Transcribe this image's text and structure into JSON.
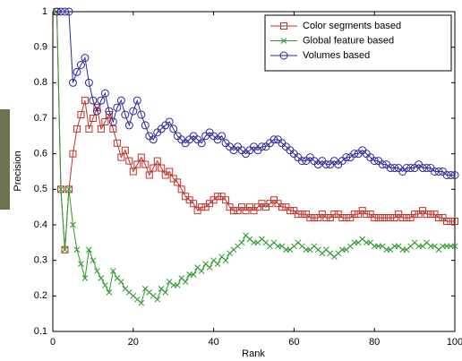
{
  "chart_data": {
    "type": "line",
    "xlabel": "Rank",
    "ylabel": "Precision",
    "x": [
      1,
      2,
      3,
      4,
      5,
      6,
      7,
      8,
      9,
      10,
      11,
      12,
      13,
      14,
      15,
      16,
      17,
      18,
      19,
      20,
      21,
      22,
      23,
      24,
      25,
      26,
      27,
      28,
      29,
      30,
      31,
      32,
      33,
      34,
      35,
      36,
      37,
      38,
      39,
      40,
      41,
      42,
      43,
      44,
      45,
      46,
      47,
      48,
      49,
      50,
      51,
      52,
      53,
      54,
      55,
      56,
      57,
      58,
      59,
      60,
      61,
      62,
      63,
      64,
      65,
      66,
      67,
      68,
      69,
      70,
      71,
      72,
      73,
      74,
      75,
      76,
      77,
      78,
      79,
      80,
      81,
      82,
      83,
      84,
      85,
      86,
      87,
      88,
      89,
      90,
      91,
      92,
      93,
      94,
      95,
      96,
      97,
      98,
      99,
      100
    ],
    "series": [
      {
        "name": "Color segments based",
        "color": "#c0302a",
        "marker": "square",
        "values": [
          1,
          0.5,
          0.33,
          0.5,
          0.6,
          0.67,
          0.71,
          0.75,
          0.67,
          0.7,
          0.73,
          0.67,
          0.69,
          0.71,
          0.67,
          0.63,
          0.59,
          0.61,
          0.58,
          0.55,
          0.57,
          0.59,
          0.57,
          0.54,
          0.56,
          0.58,
          0.56,
          0.54,
          0.55,
          0.53,
          0.52,
          0.5,
          0.48,
          0.47,
          0.46,
          0.44,
          0.45,
          0.45,
          0.46,
          0.47,
          0.48,
          0.48,
          0.47,
          0.45,
          0.44,
          0.44,
          0.45,
          0.44,
          0.45,
          0.44,
          0.45,
          0.46,
          0.45,
          0.46,
          0.47,
          0.46,
          0.45,
          0.45,
          0.44,
          0.44,
          0.43,
          0.43,
          0.43,
          0.42,
          0.42,
          0.42,
          0.43,
          0.42,
          0.42,
          0.43,
          0.43,
          0.42,
          0.42,
          0.42,
          0.43,
          0.43,
          0.44,
          0.43,
          0.43,
          0.42,
          0.42,
          0.42,
          0.42,
          0.42,
          0.42,
          0.43,
          0.42,
          0.42,
          0.42,
          0.43,
          0.43,
          0.44,
          0.43,
          0.43,
          0.43,
          0.42,
          0.42,
          0.41,
          0.41,
          0.41
        ]
      },
      {
        "name": "Global feature based",
        "color": "#2e9a2e",
        "marker": "x",
        "values": [
          1,
          0.5,
          0.33,
          0.5,
          0.4,
          0.33,
          0.29,
          0.25,
          0.33,
          0.3,
          0.27,
          0.25,
          0.23,
          0.21,
          0.27,
          0.25,
          0.24,
          0.22,
          0.21,
          0.2,
          0.19,
          0.18,
          0.22,
          0.21,
          0.2,
          0.19,
          0.22,
          0.21,
          0.24,
          0.23,
          0.23,
          0.25,
          0.24,
          0.26,
          0.26,
          0.28,
          0.27,
          0.29,
          0.28,
          0.3,
          0.29,
          0.31,
          0.3,
          0.32,
          0.33,
          0.34,
          0.35,
          0.37,
          0.36,
          0.35,
          0.35,
          0.36,
          0.35,
          0.34,
          0.35,
          0.34,
          0.34,
          0.33,
          0.33,
          0.34,
          0.35,
          0.34,
          0.33,
          0.33,
          0.34,
          0.33,
          0.32,
          0.33,
          0.32,
          0.31,
          0.32,
          0.33,
          0.33,
          0.34,
          0.35,
          0.35,
          0.36,
          0.35,
          0.35,
          0.34,
          0.34,
          0.34,
          0.33,
          0.33,
          0.34,
          0.34,
          0.33,
          0.33,
          0.34,
          0.35,
          0.34,
          0.34,
          0.35,
          0.34,
          0.34,
          0.33,
          0.34,
          0.34,
          0.34,
          0.34
        ]
      },
      {
        "name": "Volumes based",
        "color": "#2a2a9a",
        "marker": "circle",
        "values": [
          1,
          1,
          1,
          1,
          0.8,
          0.83,
          0.85,
          0.87,
          0.8,
          0.75,
          0.72,
          0.75,
          0.77,
          0.72,
          0.69,
          0.73,
          0.75,
          0.71,
          0.68,
          0.72,
          0.75,
          0.71,
          0.68,
          0.65,
          0.64,
          0.66,
          0.67,
          0.68,
          0.69,
          0.67,
          0.65,
          0.64,
          0.63,
          0.64,
          0.65,
          0.64,
          0.63,
          0.65,
          0.66,
          0.65,
          0.64,
          0.65,
          0.63,
          0.62,
          0.61,
          0.62,
          0.61,
          0.6,
          0.61,
          0.62,
          0.61,
          0.62,
          0.62,
          0.63,
          0.64,
          0.64,
          0.63,
          0.62,
          0.61,
          0.6,
          0.59,
          0.58,
          0.58,
          0.59,
          0.58,
          0.57,
          0.58,
          0.57,
          0.57,
          0.58,
          0.57,
          0.58,
          0.59,
          0.59,
          0.6,
          0.6,
          0.61,
          0.6,
          0.59,
          0.58,
          0.58,
          0.57,
          0.57,
          0.56,
          0.56,
          0.56,
          0.55,
          0.56,
          0.56,
          0.56,
          0.57,
          0.56,
          0.56,
          0.56,
          0.55,
          0.55,
          0.55,
          0.54,
          0.54,
          0.54
        ]
      }
    ],
    "xlim": [
      0,
      100
    ],
    "xticks": [
      0,
      20,
      40,
      60,
      80,
      100
    ],
    "ylim": [
      0.1,
      1
    ],
    "yticks": [
      0.1,
      0.2,
      0.3,
      0.4,
      0.5,
      0.6,
      0.7,
      0.8,
      0.9,
      1
    ],
    "grid": false,
    "legend": "upper right"
  }
}
